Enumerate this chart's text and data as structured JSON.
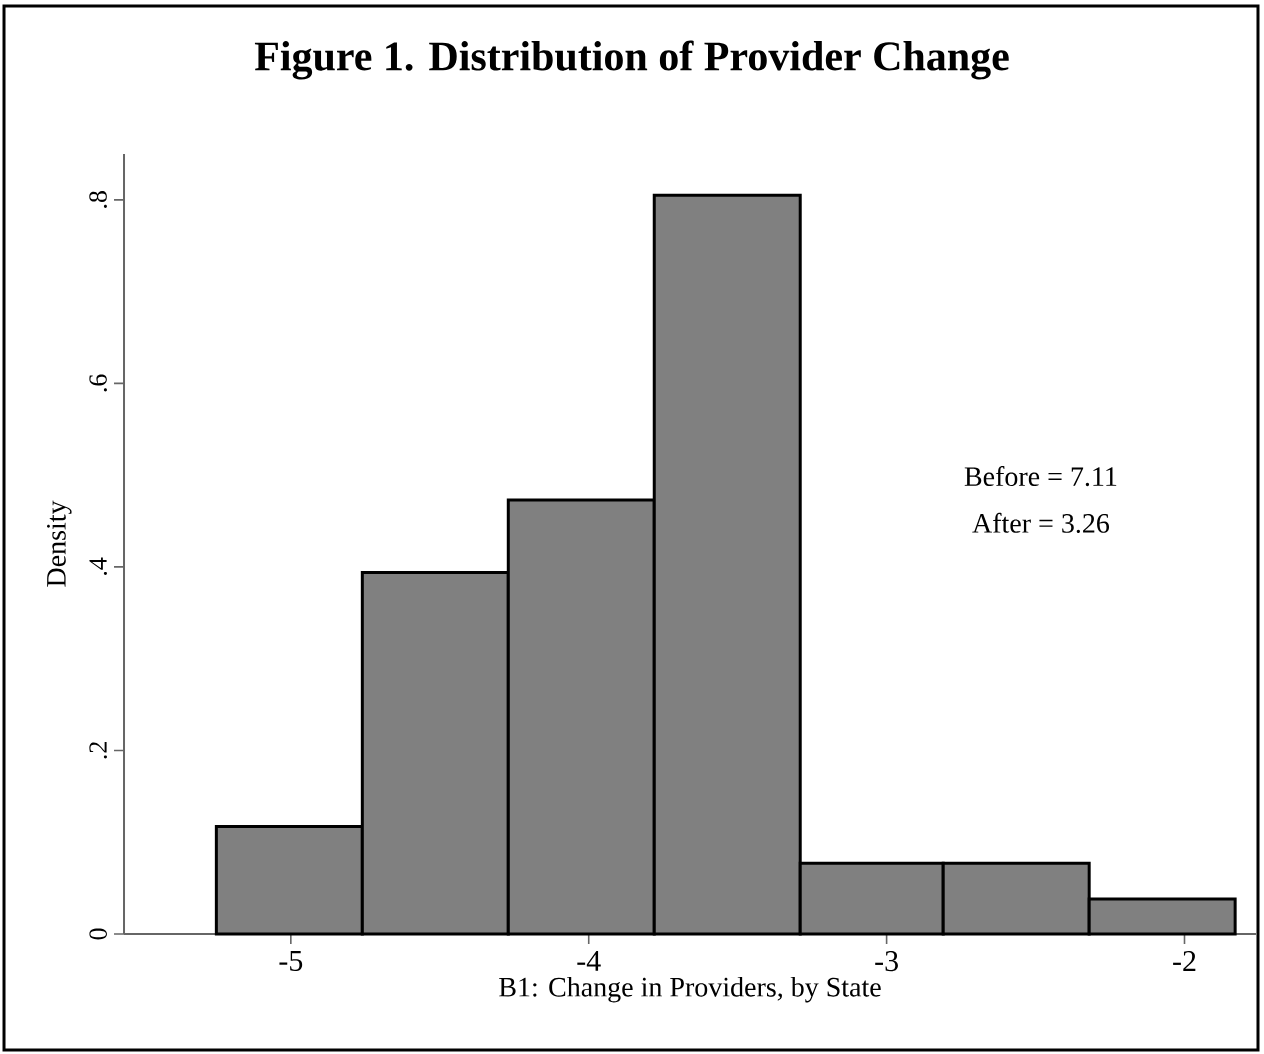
{
  "chart_data": {
    "type": "histogram",
    "title": "Figure 1.  Distribution of Provider Change",
    "xlabel": "B1: Change in Providers, by State",
    "ylabel": "Density",
    "bins": [
      -5.25,
      -4.76,
      -4.27,
      -3.78,
      -3.29,
      -2.81,
      -2.32,
      -1.83
    ],
    "values": [
      0.117,
      0.394,
      0.473,
      0.805,
      0.077,
      0.077,
      0.038
    ],
    "color": "#808080",
    "xlim": [
      -5.56,
      -1.76
    ],
    "ylim": [
      0,
      0.85
    ],
    "xticks": [
      -5,
      -4,
      -3,
      -2
    ],
    "yticks": [
      {
        "value": 0,
        "label": "0"
      },
      {
        "value": 0.2,
        "label": ".2"
      },
      {
        "value": 0.4,
        "label": ".4"
      },
      {
        "value": 0.6,
        "label": ".6"
      },
      {
        "value": 0.8,
        "label": ".8"
      }
    ],
    "annotations": [
      "Before = 7.11",
      "After = 3.26"
    ],
    "grid": false
  }
}
